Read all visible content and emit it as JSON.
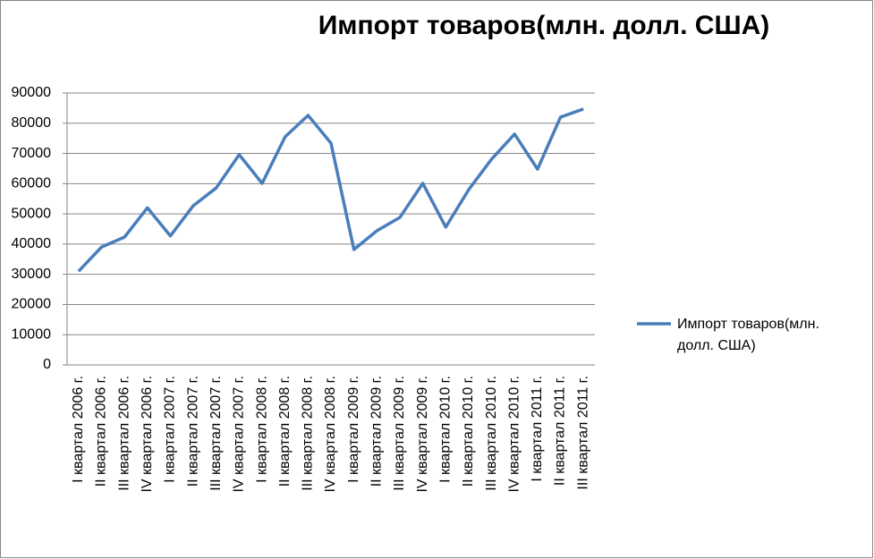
{
  "chart_data": {
    "type": "line",
    "title": "Импорт товаров(млн. долл. США)",
    "categories": [
      "I квартал 2006 г.",
      "II квартал 2006 г.",
      "III квартал 2006 г.",
      "IV квартал 2006 г.",
      "I квартал 2007 г.",
      "II квартал 2007 г.",
      "III квартал 2007 г.",
      "IV квартал 2007 г.",
      "I квартал 2008 г.",
      "II квартал 2008 г.",
      "III квартал 2008 г.",
      "IV квартал 2008 г.",
      "I квартал 2009 г.",
      "II квартал 2009 г.",
      "III квартал 2009 г.",
      "IV квартал 2009 г.",
      "I квартал 2010 г.",
      "II квартал 2010 г.",
      "III квартал 2010 г.",
      "IV квартал 2010 г.",
      "I квартал 2011 г.",
      "II квартал 2011 г.",
      "III квартал 2011 г."
    ],
    "series": [
      {
        "name": "Импорт товаров(млн. долл. США)",
        "color": "#4a7ebb",
        "values": [
          31000,
          39000,
          42300,
          52000,
          42700,
          52700,
          58600,
          69600,
          60100,
          75500,
          82600,
          73400,
          38200,
          44400,
          48800,
          60100,
          45600,
          58000,
          68100,
          76400,
          64800,
          82000,
          84700
        ]
      }
    ],
    "ylim": [
      0,
      90000
    ],
    "yticks": [
      0,
      10000,
      20000,
      30000,
      40000,
      50000,
      60000,
      70000,
      80000,
      90000
    ],
    "grid": true,
    "legend": "right"
  }
}
